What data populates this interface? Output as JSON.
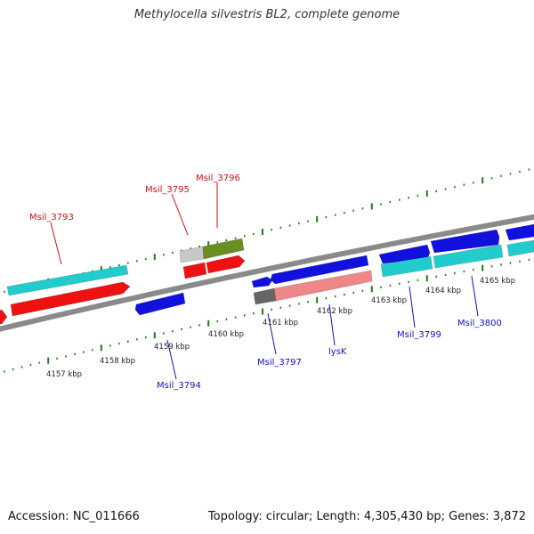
{
  "title": "Methylocella silvestris BL2, complete genome",
  "footer": {
    "accession": "Accession: NC_011666",
    "summary": "Topology: circular; Length: 4,305,430 bp; Genes: 3,872"
  },
  "colors": {
    "backbone": "#8a8a8a",
    "tick": "#1e7a1e",
    "label_top": "#cc1111",
    "label_bottom": "#1111cc",
    "cyan": "#22cccc",
    "red": "#ee1111",
    "blue": "#1111dd",
    "gray": "#666666",
    "lightgray": "#c8c8c8",
    "olive": "#6b8e23",
    "pink": "#ee8888"
  },
  "scale_labels": [
    "4157 kbp",
    "4158 kbp",
    "4159 kbp",
    "4160 kbp",
    "4161 kbp",
    "4162 kbp",
    "4163 kbp",
    "4164 kbp",
    "4165 kbp"
  ],
  "top_labels": [
    "Msil_3793",
    "Msil_3795",
    "Msil_3796"
  ],
  "bottom_labels": [
    "Msil_3794",
    "Msil_3797",
    "lysK",
    "Msil_3799",
    "Msil_3800"
  ]
}
